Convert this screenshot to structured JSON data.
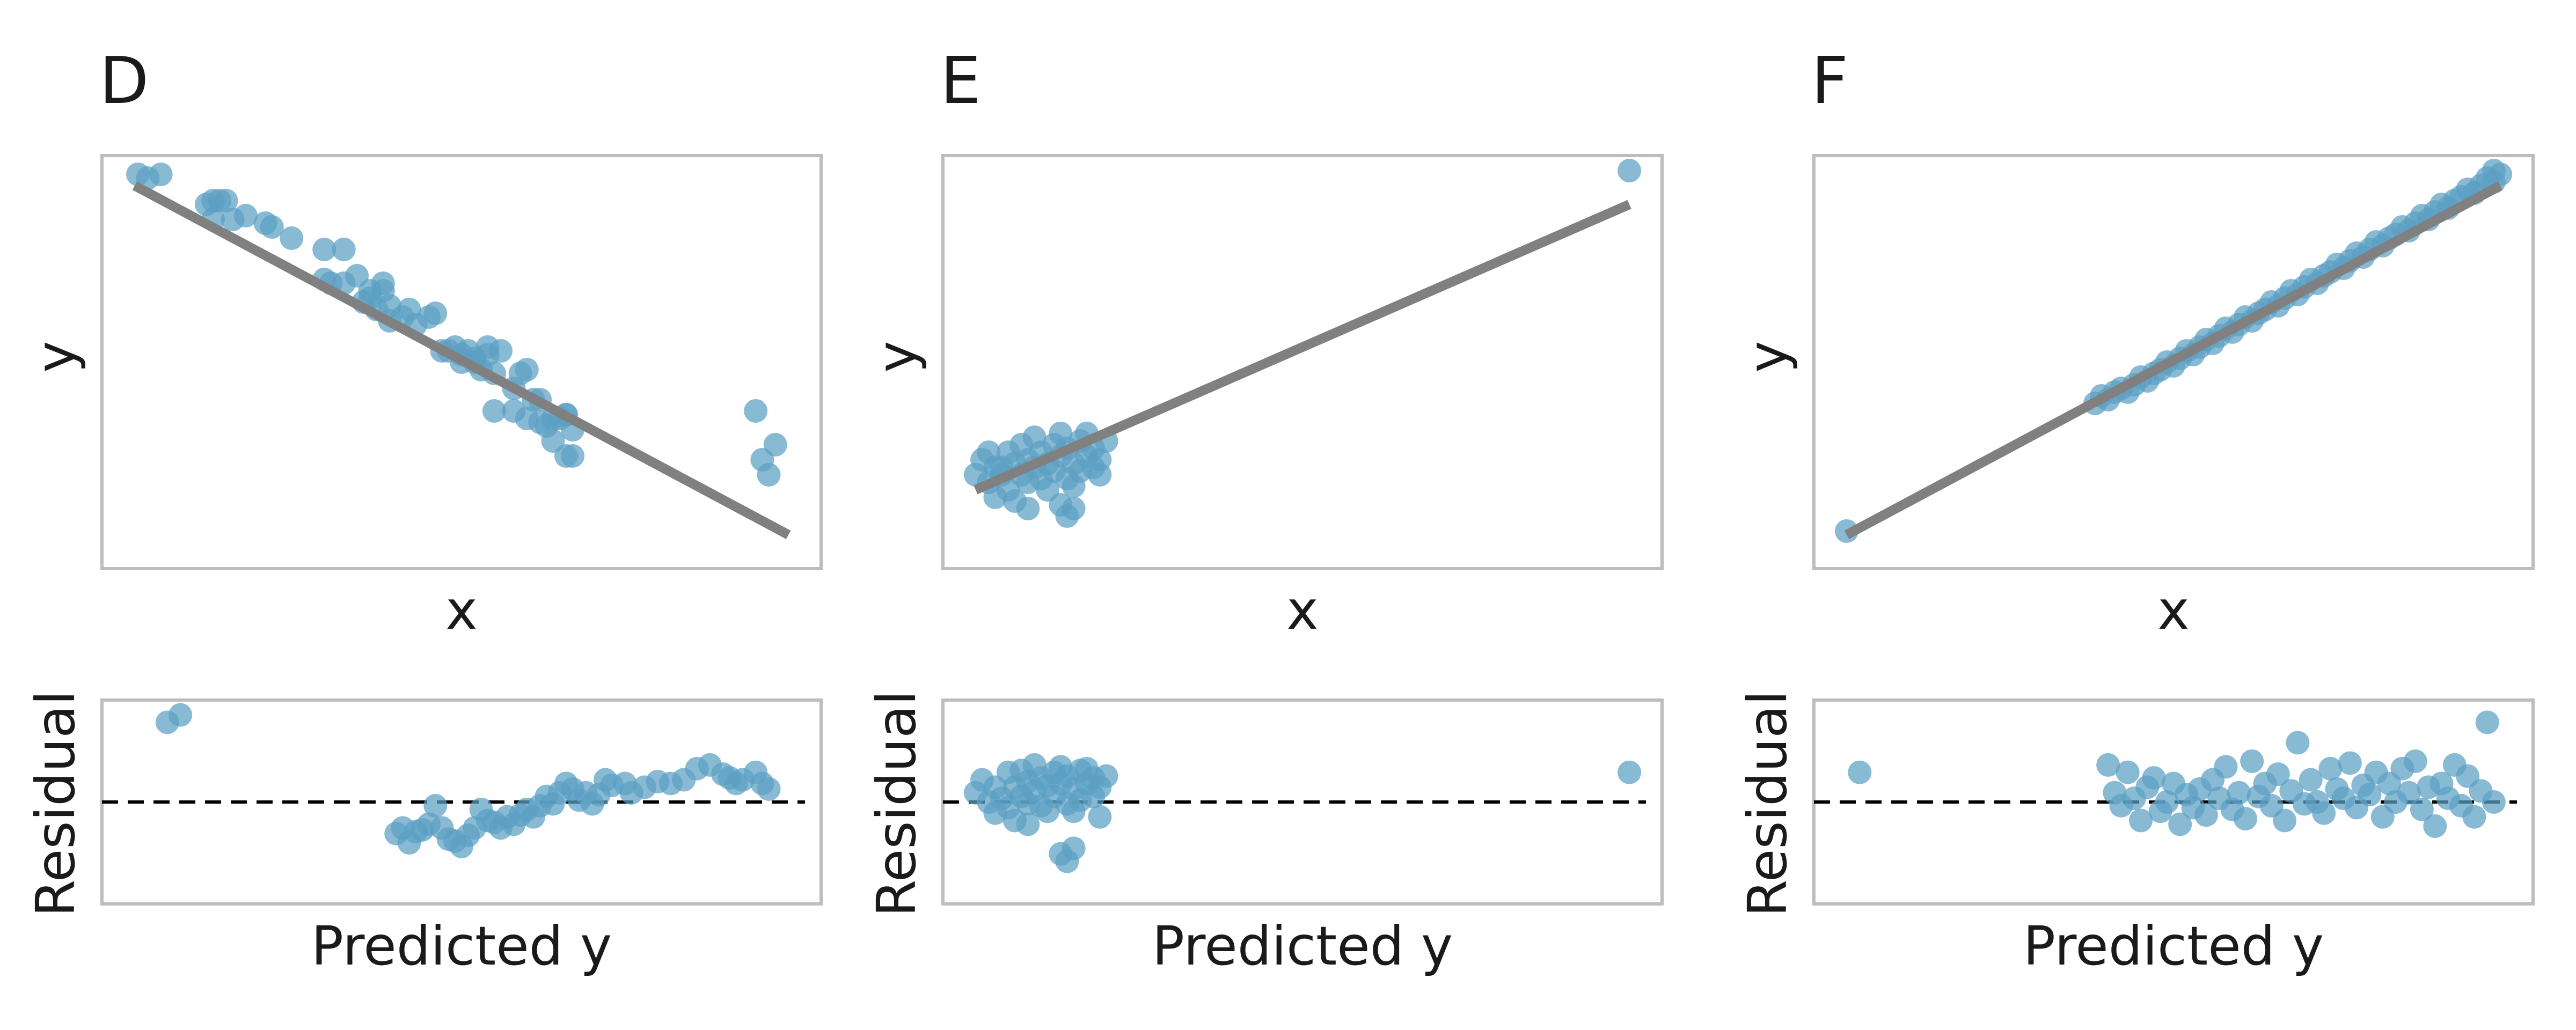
{
  "colors": {
    "point": "#5b9fc4",
    "fit_line": "#808080",
    "frame": "#bdbdbd",
    "zero_line": "#000000"
  },
  "chart_data": [
    {
      "type": "scatter",
      "panel": "D",
      "title": "D",
      "xlabel": "x",
      "ylabel": "y",
      "residual_xlabel": "Predicted y",
      "residual_ylabel": "Residual",
      "grid": false,
      "legend": "none",
      "xlim": [
        -0.05,
        1.05
      ],
      "ylim": [
        -0.05,
        1.05
      ],
      "fit_line": [
        [
          0.0,
          0.97
        ],
        [
          1.0,
          0.04
        ]
      ],
      "points": [
        [
          0.005,
          1.0
        ],
        [
          0.02,
          0.99
        ],
        [
          0.04,
          1.0
        ],
        [
          0.11,
          0.92
        ],
        [
          0.12,
          0.93
        ],
        [
          0.13,
          0.93
        ],
        [
          0.14,
          0.93
        ],
        [
          0.17,
          0.89
        ],
        [
          0.12,
          0.88
        ],
        [
          0.15,
          0.88
        ],
        [
          0.2,
          0.87
        ],
        [
          0.21,
          0.86
        ],
        [
          0.24,
          0.83
        ],
        [
          0.29,
          0.8
        ],
        [
          0.32,
          0.8
        ],
        [
          0.29,
          0.72
        ],
        [
          0.3,
          0.71
        ],
        [
          0.32,
          0.71
        ],
        [
          0.34,
          0.73
        ],
        [
          0.36,
          0.69
        ],
        [
          0.38,
          0.69
        ],
        [
          0.35,
          0.66
        ],
        [
          0.36,
          0.67
        ],
        [
          0.38,
          0.71
        ],
        [
          0.37,
          0.64
        ],
        [
          0.39,
          0.65
        ],
        [
          0.39,
          0.61
        ],
        [
          0.41,
          0.62
        ],
        [
          0.42,
          0.64
        ],
        [
          0.43,
          0.6
        ],
        [
          0.45,
          0.62
        ],
        [
          0.46,
          0.63
        ],
        [
          0.47,
          0.53
        ],
        [
          0.48,
          0.53
        ],
        [
          0.5,
          0.52
        ],
        [
          0.49,
          0.54
        ],
        [
          0.5,
          0.5
        ],
        [
          0.51,
          0.53
        ],
        [
          0.52,
          0.5
        ],
        [
          0.53,
          0.48
        ],
        [
          0.52,
          0.51
        ],
        [
          0.54,
          0.54
        ],
        [
          0.56,
          0.53
        ],
        [
          0.58,
          0.43
        ],
        [
          0.55,
          0.47
        ],
        [
          0.54,
          0.52
        ],
        [
          0.59,
          0.47
        ],
        [
          0.6,
          0.48
        ],
        [
          0.61,
          0.4
        ],
        [
          0.62,
          0.4
        ],
        [
          0.63,
          0.33
        ],
        [
          0.64,
          0.35
        ],
        [
          0.55,
          0.37
        ],
        [
          0.66,
          0.36
        ],
        [
          0.58,
          0.37
        ],
        [
          0.66,
          0.36
        ],
        [
          0.6,
          0.35
        ],
        [
          0.62,
          0.34
        ],
        [
          0.65,
          0.35
        ],
        [
          0.67,
          0.32
        ],
        [
          0.64,
          0.29
        ],
        [
          0.66,
          0.25
        ],
        [
          0.67,
          0.25
        ],
        [
          0.95,
          0.37
        ],
        [
          0.98,
          0.28
        ],
        [
          0.96,
          0.24
        ],
        [
          0.97,
          0.2
        ]
      ],
      "residual_points": [
        [
          0.05,
          0.93
        ],
        [
          0.07,
          0.97
        ],
        [
          0.4,
          0.33
        ],
        [
          0.41,
          0.36
        ],
        [
          0.43,
          0.34
        ],
        [
          0.42,
          0.28
        ],
        [
          0.44,
          0.35
        ],
        [
          0.45,
          0.38
        ],
        [
          0.46,
          0.48
        ],
        [
          0.48,
          0.3
        ],
        [
          0.49,
          0.29
        ],
        [
          0.47,
          0.36
        ],
        [
          0.5,
          0.26
        ],
        [
          0.51,
          0.32
        ],
        [
          0.52,
          0.36
        ],
        [
          0.53,
          0.46
        ],
        [
          0.54,
          0.4
        ],
        [
          0.55,
          0.39
        ],
        [
          0.56,
          0.36
        ],
        [
          0.57,
          0.42
        ],
        [
          0.58,
          0.38
        ],
        [
          0.59,
          0.43
        ],
        [
          0.6,
          0.46
        ],
        [
          0.61,
          0.42
        ],
        [
          0.62,
          0.48
        ],
        [
          0.63,
          0.53
        ],
        [
          0.64,
          0.49
        ],
        [
          0.65,
          0.55
        ],
        [
          0.66,
          0.6
        ],
        [
          0.67,
          0.57
        ],
        [
          0.68,
          0.51
        ],
        [
          0.69,
          0.55
        ],
        [
          0.7,
          0.49
        ],
        [
          0.71,
          0.54
        ],
        [
          0.72,
          0.62
        ],
        [
          0.73,
          0.59
        ],
        [
          0.75,
          0.6
        ],
        [
          0.76,
          0.55
        ],
        [
          0.78,
          0.58
        ],
        [
          0.8,
          0.61
        ],
        [
          0.82,
          0.6
        ],
        [
          0.84,
          0.62
        ],
        [
          0.86,
          0.68
        ],
        [
          0.88,
          0.7
        ],
        [
          0.9,
          0.65
        ],
        [
          0.91,
          0.63
        ],
        [
          0.92,
          0.6
        ],
        [
          0.93,
          0.62
        ],
        [
          0.95,
          0.66
        ],
        [
          0.96,
          0.6
        ],
        [
          0.97,
          0.57
        ]
      ]
    },
    {
      "type": "scatter",
      "panel": "E",
      "title": "E",
      "xlabel": "x",
      "ylabel": "y",
      "residual_xlabel": "Predicted y",
      "residual_ylabel": "Residual",
      "grid": false,
      "legend": "none",
      "xlim": [
        -0.05,
        1.05
      ],
      "ylim": [
        -0.05,
        1.05
      ],
      "fit_line": [
        [
          0.0,
          0.16
        ],
        [
          1.0,
          0.92
        ]
      ],
      "points": [
        [
          0.0,
          0.2
        ],
        [
          0.01,
          0.24
        ],
        [
          0.02,
          0.18
        ],
        [
          0.03,
          0.22
        ],
        [
          0.03,
          0.14
        ],
        [
          0.04,
          0.2
        ],
        [
          0.05,
          0.26
        ],
        [
          0.05,
          0.16
        ],
        [
          0.06,
          0.23
        ],
        [
          0.06,
          0.13
        ],
        [
          0.07,
          0.2
        ],
        [
          0.07,
          0.28
        ],
        [
          0.08,
          0.24
        ],
        [
          0.08,
          0.18
        ],
        [
          0.09,
          0.22
        ],
        [
          0.09,
          0.3
        ],
        [
          0.1,
          0.26
        ],
        [
          0.1,
          0.19
        ],
        [
          0.11,
          0.23
        ],
        [
          0.11,
          0.16
        ],
        [
          0.12,
          0.28
        ],
        [
          0.12,
          0.21
        ],
        [
          0.13,
          0.31
        ],
        [
          0.13,
          0.25
        ],
        [
          0.14,
          0.19
        ],
        [
          0.14,
          0.27
        ],
        [
          0.15,
          0.23
        ],
        [
          0.15,
          0.17
        ],
        [
          0.16,
          0.29
        ],
        [
          0.16,
          0.21
        ],
        [
          0.17,
          0.25
        ],
        [
          0.17,
          0.31
        ],
        [
          0.18,
          0.22
        ],
        [
          0.18,
          0.27
        ],
        [
          0.19,
          0.2
        ],
        [
          0.19,
          0.24
        ],
        [
          0.2,
          0.29
        ],
        [
          0.13,
          0.12
        ],
        [
          0.14,
          0.09
        ],
        [
          0.15,
          0.11
        ],
        [
          0.08,
          0.11
        ],
        [
          0.04,
          0.22
        ],
        [
          0.02,
          0.26
        ],
        [
          1.0,
          1.01
        ]
      ],
      "residual_points": [
        [
          0.0,
          0.55
        ],
        [
          0.01,
          0.62
        ],
        [
          0.02,
          0.5
        ],
        [
          0.03,
          0.58
        ],
        [
          0.03,
          0.44
        ],
        [
          0.04,
          0.52
        ],
        [
          0.05,
          0.66
        ],
        [
          0.05,
          0.47
        ],
        [
          0.06,
          0.58
        ],
        [
          0.06,
          0.4
        ],
        [
          0.07,
          0.53
        ],
        [
          0.07,
          0.67
        ],
        [
          0.08,
          0.61
        ],
        [
          0.08,
          0.49
        ],
        [
          0.09,
          0.56
        ],
        [
          0.09,
          0.7
        ],
        [
          0.1,
          0.63
        ],
        [
          0.1,
          0.48
        ],
        [
          0.11,
          0.59
        ],
        [
          0.11,
          0.45
        ],
        [
          0.12,
          0.66
        ],
        [
          0.12,
          0.53
        ],
        [
          0.13,
          0.69
        ],
        [
          0.13,
          0.6
        ],
        [
          0.14,
          0.49
        ],
        [
          0.14,
          0.64
        ],
        [
          0.15,
          0.57
        ],
        [
          0.15,
          0.45
        ],
        [
          0.16,
          0.67
        ],
        [
          0.16,
          0.51
        ],
        [
          0.17,
          0.6
        ],
        [
          0.17,
          0.68
        ],
        [
          0.18,
          0.53
        ],
        [
          0.18,
          0.63
        ],
        [
          0.19,
          0.42
        ],
        [
          0.19,
          0.58
        ],
        [
          0.2,
          0.64
        ],
        [
          0.13,
          0.22
        ],
        [
          0.14,
          0.18
        ],
        [
          0.15,
          0.25
        ],
        [
          0.08,
          0.38
        ],
        [
          1.0,
          0.66
        ]
      ]
    },
    {
      "type": "scatter",
      "panel": "F",
      "title": "F",
      "xlabel": "x",
      "ylabel": "y",
      "residual_xlabel": "Predicted y",
      "residual_ylabel": "Residual",
      "grid": false,
      "legend": "none",
      "xlim": [
        -0.05,
        1.05
      ],
      "ylim": [
        -0.05,
        1.05
      ],
      "fit_line": [
        [
          0.0,
          0.04
        ],
        [
          1.0,
          0.97
        ]
      ],
      "points": [
        [
          0.0,
          0.05
        ],
        [
          0.38,
          0.39
        ],
        [
          0.39,
          0.41
        ],
        [
          0.4,
          0.4
        ],
        [
          0.41,
          0.42
        ],
        [
          0.42,
          0.43
        ],
        [
          0.43,
          0.42
        ],
        [
          0.44,
          0.44
        ],
        [
          0.45,
          0.46
        ],
        [
          0.46,
          0.45
        ],
        [
          0.47,
          0.47
        ],
        [
          0.48,
          0.48
        ],
        [
          0.49,
          0.5
        ],
        [
          0.5,
          0.49
        ],
        [
          0.51,
          0.51
        ],
        [
          0.52,
          0.53
        ],
        [
          0.53,
          0.52
        ],
        [
          0.54,
          0.54
        ],
        [
          0.55,
          0.56
        ],
        [
          0.56,
          0.55
        ],
        [
          0.57,
          0.57
        ],
        [
          0.58,
          0.59
        ],
        [
          0.59,
          0.58
        ],
        [
          0.6,
          0.6
        ],
        [
          0.61,
          0.62
        ],
        [
          0.62,
          0.61
        ],
        [
          0.63,
          0.63
        ],
        [
          0.64,
          0.64
        ],
        [
          0.65,
          0.66
        ],
        [
          0.66,
          0.65
        ],
        [
          0.67,
          0.67
        ],
        [
          0.68,
          0.69
        ],
        [
          0.69,
          0.68
        ],
        [
          0.7,
          0.7
        ],
        [
          0.71,
          0.72
        ],
        [
          0.72,
          0.71
        ],
        [
          0.73,
          0.73
        ],
        [
          0.74,
          0.74
        ],
        [
          0.75,
          0.76
        ],
        [
          0.76,
          0.75
        ],
        [
          0.77,
          0.77
        ],
        [
          0.78,
          0.79
        ],
        [
          0.79,
          0.78
        ],
        [
          0.8,
          0.8
        ],
        [
          0.81,
          0.82
        ],
        [
          0.82,
          0.81
        ],
        [
          0.83,
          0.83
        ],
        [
          0.84,
          0.84
        ],
        [
          0.85,
          0.86
        ],
        [
          0.86,
          0.85
        ],
        [
          0.87,
          0.87
        ],
        [
          0.88,
          0.89
        ],
        [
          0.89,
          0.88
        ],
        [
          0.9,
          0.9
        ],
        [
          0.91,
          0.92
        ],
        [
          0.92,
          0.91
        ],
        [
          0.93,
          0.93
        ],
        [
          0.94,
          0.94
        ],
        [
          0.95,
          0.96
        ],
        [
          0.96,
          0.95
        ],
        [
          0.97,
          0.97
        ],
        [
          0.98,
          0.99
        ],
        [
          0.99,
          0.98
        ],
        [
          1.0,
          1.0
        ],
        [
          0.99,
          1.01
        ]
      ],
      "residual_points": [
        [
          0.02,
          0.66
        ],
        [
          0.4,
          0.7
        ],
        [
          0.41,
          0.55
        ],
        [
          0.42,
          0.48
        ],
        [
          0.43,
          0.66
        ],
        [
          0.44,
          0.52
        ],
        [
          0.45,
          0.4
        ],
        [
          0.46,
          0.58
        ],
        [
          0.47,
          0.63
        ],
        [
          0.48,
          0.45
        ],
        [
          0.49,
          0.5
        ],
        [
          0.5,
          0.6
        ],
        [
          0.51,
          0.38
        ],
        [
          0.52,
          0.54
        ],
        [
          0.53,
          0.47
        ],
        [
          0.54,
          0.57
        ],
        [
          0.55,
          0.43
        ],
        [
          0.56,
          0.62
        ],
        [
          0.57,
          0.52
        ],
        [
          0.58,
          0.69
        ],
        [
          0.59,
          0.46
        ],
        [
          0.6,
          0.55
        ],
        [
          0.61,
          0.41
        ],
        [
          0.62,
          0.72
        ],
        [
          0.63,
          0.53
        ],
        [
          0.64,
          0.6
        ],
        [
          0.65,
          0.48
        ],
        [
          0.66,
          0.65
        ],
        [
          0.67,
          0.4
        ],
        [
          0.68,
          0.56
        ],
        [
          0.69,
          0.82
        ],
        [
          0.7,
          0.49
        ],
        [
          0.71,
          0.62
        ],
        [
          0.72,
          0.5
        ],
        [
          0.73,
          0.44
        ],
        [
          0.74,
          0.68
        ],
        [
          0.75,
          0.57
        ],
        [
          0.76,
          0.52
        ],
        [
          0.77,
          0.71
        ],
        [
          0.78,
          0.47
        ],
        [
          0.79,
          0.59
        ],
        [
          0.8,
          0.54
        ],
        [
          0.81,
          0.66
        ],
        [
          0.82,
          0.42
        ],
        [
          0.83,
          0.6
        ],
        [
          0.84,
          0.5
        ],
        [
          0.85,
          0.68
        ],
        [
          0.86,
          0.55
        ],
        [
          0.87,
          0.72
        ],
        [
          0.88,
          0.46
        ],
        [
          0.89,
          0.58
        ],
        [
          0.9,
          0.37
        ],
        [
          0.91,
          0.6
        ],
        [
          0.92,
          0.52
        ],
        [
          0.93,
          0.7
        ],
        [
          0.94,
          0.48
        ],
        [
          0.95,
          0.64
        ],
        [
          0.96,
          0.42
        ],
        [
          0.97,
          0.56
        ],
        [
          0.98,
          0.93
        ],
        [
          0.99,
          0.5
        ]
      ]
    }
  ]
}
